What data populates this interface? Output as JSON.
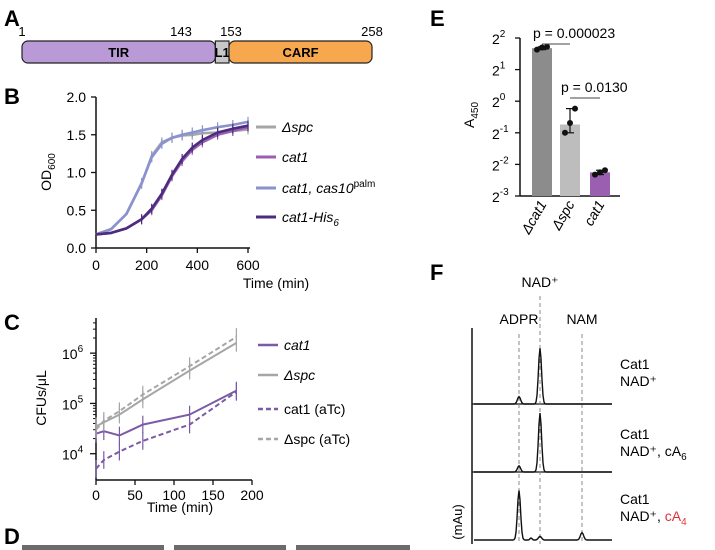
{
  "panels": {
    "A": {
      "letter": "A",
      "ticks": [
        "1",
        "143",
        "153",
        "258"
      ],
      "domains": [
        {
          "name": "TIR",
          "start": 1,
          "end": 143,
          "color": "#b99ad6"
        },
        {
          "name": "L1",
          "start": 143,
          "end": 153,
          "color": "#c8c8c8"
        },
        {
          "name": "CARF",
          "start": 153,
          "end": 258,
          "color": "#f7a84e"
        }
      ]
    },
    "B": {
      "letter": "B",
      "ylabel": "OD",
      "ylabel_sub": "600",
      "xlabel": "Time (min)",
      "legend": [
        {
          "text": "Δspc",
          "color": "#a6a6a6"
        },
        {
          "text": "cat1",
          "color": "#9a5fb0"
        },
        {
          "text": "cat1, cas10",
          "sup": "palm",
          "color": "#8a92cf"
        },
        {
          "text": "cat1-His",
          "sub": "6",
          "color": "#4b2c7e"
        }
      ]
    },
    "C": {
      "letter": "C",
      "ylabel": "CFUs/μL",
      "xlabel": "Time (min)",
      "legend": [
        {
          "text": "cat1",
          "color": "#7b5aa6"
        },
        {
          "text": "Δspc",
          "color": "#a6a6a6"
        },
        {
          "text": "cat1 (aTc)",
          "color": "#7b5aa6"
        },
        {
          "text": "Δspc (aTc)",
          "color": "#a6a6a6"
        }
      ]
    },
    "D": {
      "letter": "D"
    },
    "E": {
      "letter": "E",
      "ylabel": "A",
      "ylabel_sub": "450",
      "pvalues": [
        "p = 0.000023",
        "p = 0.0130"
      ]
    },
    "F": {
      "letter": "F",
      "peaks": [
        "NAD⁺",
        "ADPR",
        "NAM"
      ],
      "yunit": "(mAu)",
      "traces": [
        {
          "line1": "Cat1",
          "line2": "NAD⁺"
        },
        {
          "line1": "Cat1",
          "line2": "NAD⁺, cA",
          "sub": "6"
        },
        {
          "line1": "Cat1",
          "line2": "NAD⁺, ",
          "highlight": "cA",
          "sub": "4",
          "highlight_color": "#e0303a"
        }
      ]
    }
  },
  "chart_data": [
    {
      "type": "line",
      "ylabel": "OD600",
      "xlabel": "Time (min)",
      "xlim": [
        0,
        600
      ],
      "ylim": [
        0,
        2.0
      ],
      "xticks": [
        0,
        200,
        400,
        600
      ],
      "yticks": [
        0.0,
        0.5,
        1.0,
        1.5,
        2.0
      ],
      "x": [
        0,
        60,
        120,
        180,
        220,
        260,
        300,
        340,
        380,
        420,
        480,
        540,
        600
      ],
      "series": [
        {
          "name": "Δspc",
          "color": "#a6a6a6",
          "values": [
            0.18,
            0.25,
            0.45,
            0.85,
            1.22,
            1.4,
            1.46,
            1.49,
            1.5,
            1.52,
            1.53,
            1.55,
            1.57
          ]
        },
        {
          "name": "cat1",
          "color": "#9a5fb0",
          "values": [
            0.18,
            0.2,
            0.26,
            0.38,
            0.5,
            0.7,
            0.95,
            1.15,
            1.3,
            1.4,
            1.5,
            1.55,
            1.6
          ]
        },
        {
          "name": "cat1, cas10palm",
          "color": "#8a92cf",
          "values": [
            0.18,
            0.25,
            0.45,
            0.86,
            1.2,
            1.38,
            1.46,
            1.5,
            1.53,
            1.56,
            1.6,
            1.63,
            1.67
          ]
        },
        {
          "name": "cat1-His6",
          "color": "#4b2c7e",
          "values": [
            0.18,
            0.2,
            0.26,
            0.38,
            0.52,
            0.72,
            0.97,
            1.18,
            1.33,
            1.43,
            1.53,
            1.58,
            1.62
          ]
        }
      ]
    },
    {
      "type": "line",
      "ylabel": "CFUs/μL",
      "xlabel": "Time (min)",
      "yscale": "log",
      "xlim": [
        0,
        200
      ],
      "ylim": [
        3000,
        5000000
      ],
      "xticks": [
        0,
        50,
        100,
        150,
        200
      ],
      "yticks": [
        "10^4",
        "10^5",
        "10^6"
      ],
      "x": [
        0,
        10,
        30,
        60,
        120,
        180
      ],
      "series": [
        {
          "name": "cat1",
          "color": "#7b5aa6",
          "dashed": false,
          "values": [
            25000,
            28000,
            23000,
            38000,
            60000,
            180000
          ]
        },
        {
          "name": "Δspc",
          "color": "#a6a6a6",
          "dashed": false,
          "values": [
            35000,
            42000,
            60000,
            120000,
            450000,
            1600000
          ]
        },
        {
          "name": "cat1 (aTc)",
          "color": "#7b5aa6",
          "dashed": true,
          "values": [
            5000,
            7500,
            11000,
            18000,
            38000,
            170000
          ]
        },
        {
          "name": "Δspc (aTc)",
          "color": "#a6a6a6",
          "dashed": true,
          "values": [
            30000,
            45000,
            70000,
            150000,
            550000,
            2100000
          ]
        }
      ]
    },
    {
      "type": "bar",
      "ylabel": "A450",
      "yscale": "log2",
      "yticks": [
        "2^-3",
        "2^-2",
        "2^-1",
        "2^0",
        "2^1",
        "2^2"
      ],
      "ylim_log2": [
        -3,
        2
      ],
      "categories": [
        "Δcat1",
        "Δspc",
        "cat1"
      ],
      "values": [
        3.2,
        0.6,
        0.21
      ],
      "colors": [
        "#8c8c8c",
        "#bdbdbd",
        "#9a5fb0"
      ],
      "points": [
        [
          3.1,
          3.25,
          3.3
        ],
        [
          0.5,
          0.62,
          0.85
        ],
        [
          0.2,
          0.21,
          0.22
        ]
      ]
    },
    {
      "type": "line",
      "yunit": "(mAu)",
      "peak_labels": [
        "ADPR",
        "NAD⁺",
        "NAM"
      ],
      "series": [
        {
          "name": "Cat1 NAD⁺",
          "peaks": [
            {
              "label": "ADPR",
              "height": 0.12
            },
            {
              "label": "NAD⁺",
              "height": 0.9
            }
          ]
        },
        {
          "name": "Cat1 NAD⁺, cA6",
          "peaks": [
            {
              "label": "ADPR",
              "height": 0.1
            },
            {
              "label": "NAD⁺",
              "height": 0.95
            }
          ]
        },
        {
          "name": "Cat1 NAD⁺, cA4",
          "peaks": [
            {
              "label": "ADPR",
              "height": 0.8
            },
            {
              "label": "NAD⁺",
              "height": 0.06
            },
            {
              "label": "NAM",
              "height": 0.12
            }
          ]
        }
      ]
    }
  ]
}
